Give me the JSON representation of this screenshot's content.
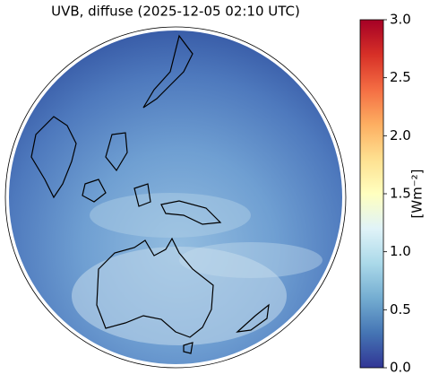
{
  "map": {
    "title": "UVB, diffuse (2025-12-05 02:10 UTC)",
    "colorbar": {
      "label": "[Wm⁻²]",
      "lim": [
        0,
        3
      ],
      "ticks": [
        {
          "value": 0,
          "label": "0.0"
        },
        0.5,
        {
          "value": 1,
          "label": "1.0"
        },
        1.5,
        {
          "value": 2,
          "label": "2.0"
        },
        2.5,
        {
          "value": 3,
          "label": "3.0"
        }
      ]
    }
  }
}
